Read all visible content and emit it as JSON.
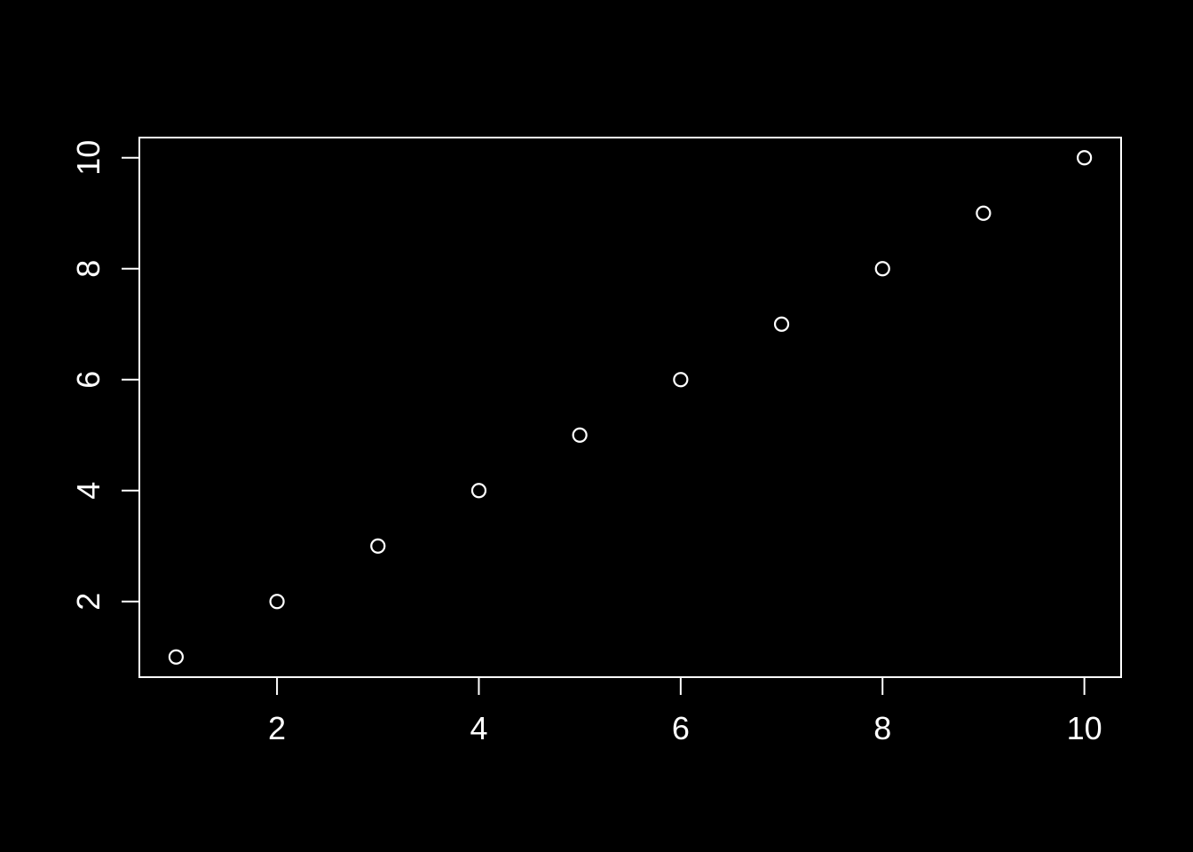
{
  "figure": {
    "name": "r-base-scatter-plot",
    "background_color": "#000000",
    "foreground_color": "#ffffff"
  },
  "chart_data": {
    "type": "scatter",
    "title": "",
    "xlabel": "",
    "ylabel": "",
    "x": [
      1,
      2,
      3,
      4,
      5,
      6,
      7,
      8,
      9,
      10
    ],
    "y": [
      1,
      2,
      3,
      4,
      5,
      6,
      7,
      8,
      9,
      10
    ],
    "points": [
      {
        "x": 1,
        "y": 1
      },
      {
        "x": 2,
        "y": 2
      },
      {
        "x": 3,
        "y": 3
      },
      {
        "x": 4,
        "y": 4
      },
      {
        "x": 5,
        "y": 5
      },
      {
        "x": 6,
        "y": 6
      },
      {
        "x": 7,
        "y": 7
      },
      {
        "x": 8,
        "y": 8
      },
      {
        "x": 9,
        "y": 9
      },
      {
        "x": 10,
        "y": 10
      }
    ],
    "marker": "open-circle",
    "marker_color": "#ffffff",
    "xlim": [
      0.636,
      10.364
    ],
    "ylim": [
      0.636,
      10.364
    ],
    "xticks": [
      2,
      4,
      6,
      8,
      10
    ],
    "yticks": [
      2,
      4,
      6,
      8,
      10
    ],
    "xtick_labels": [
      "2",
      "4",
      "6",
      "8",
      "10"
    ],
    "ytick_labels": [
      "2",
      "4",
      "6",
      "8",
      "10"
    ],
    "ytick_label_rotation_deg": -90,
    "grid": false,
    "legend": null,
    "box": true,
    "axis_color": "#ffffff",
    "tick_label_color": "#ffffff"
  }
}
